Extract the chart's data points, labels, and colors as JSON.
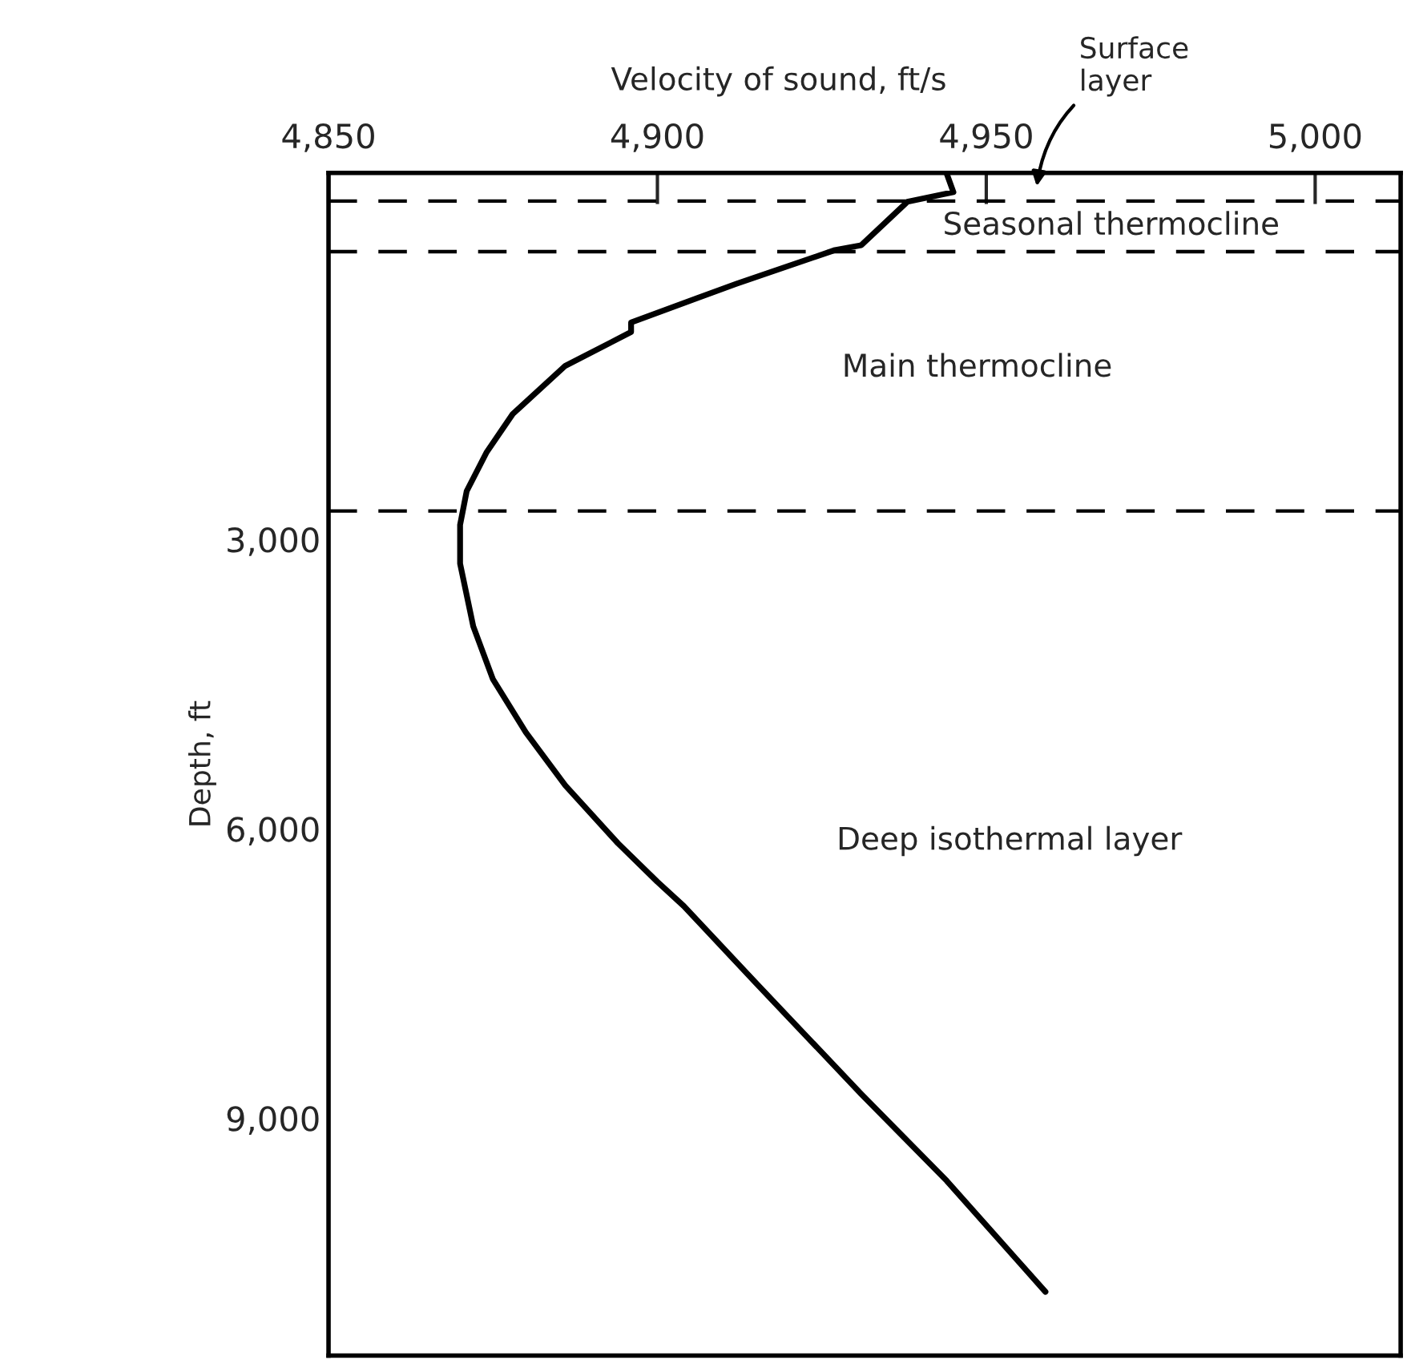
{
  "chart_data": {
    "type": "line",
    "xlabel": "Velocity of sound, ft/s",
    "ylabel": "Depth, ft",
    "xlim": [
      4850,
      5013
    ],
    "ylim": [
      11460,
      -800
    ],
    "xticks": [
      {
        "value": 4850,
        "label": "4,850"
      },
      {
        "value": 4900,
        "label": "4,900"
      },
      {
        "value": 4950,
        "label": "4,950"
      },
      {
        "value": 5000,
        "label": "5,000"
      }
    ],
    "yticks": [
      {
        "value": 3000,
        "label": "3,000"
      },
      {
        "value": 6000,
        "label": "6,000"
      },
      {
        "value": 9000,
        "label": "9,000"
      }
    ],
    "grid": false,
    "legend": false,
    "marker": "none",
    "line_style": "solid",
    "series": [
      {
        "color": "#000000",
        "x": [
          4944,
          4945,
          4938,
          4931,
          4927,
          4912,
          4906,
          4896,
          4896,
          4886,
          4878,
          4874,
          4871,
          4870,
          4870,
          4872,
          4875,
          4880,
          4886,
          4894,
          4900,
          4904,
          4915,
          4931,
          4944,
          4959
        ],
        "values": [
          -790,
          -600,
          -500,
          -50,
          0,
          350,
          500,
          750,
          850,
          1200,
          1700,
          2100,
          2500,
          2850,
          3250,
          3900,
          4450,
          5000,
          5550,
          6150,
          6550,
          6800,
          7600,
          8750,
          9650,
          10800
        ]
      }
    ],
    "ref_lines": [
      {
        "axis": "y",
        "value": -508,
        "line_style": "dashed",
        "color": "#000000"
      },
      {
        "axis": "y",
        "value": 16,
        "line_style": "dashed",
        "color": "#000000"
      },
      {
        "axis": "y",
        "value": 2705,
        "line_style": "dashed",
        "color": "#000000"
      }
    ],
    "annotations": [
      "Surface\nlayer",
      "Seasonal thermocline",
      "Main thermocline",
      "Deep isothermal layer"
    ]
  }
}
